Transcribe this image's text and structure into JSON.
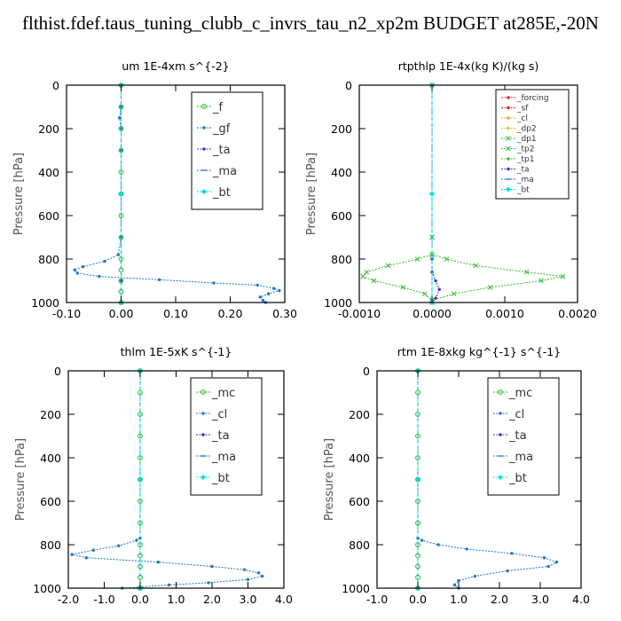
{
  "figure": {
    "title": "flthist.fdef.taus_tuning_clubb_c_invrs_tau_n2_xp2m  BUDGET at285E,-20N"
  },
  "chart_data": [
    {
      "type": "line",
      "title": "um  1E-4xm s^{-2}",
      "ylabel": "Pressure [hPa]",
      "xlim": [
        -0.1,
        0.3
      ],
      "ylim": [
        1000,
        0
      ],
      "xticks": [
        "-0.10",
        "0.00",
        "0.10",
        "0.20",
        "0.30"
      ],
      "xtick_values": [
        -0.1,
        0.0,
        0.1,
        0.2,
        0.3
      ],
      "yticks": [
        "0",
        "200",
        "400",
        "600",
        "800",
        "1000"
      ],
      "ytick_values": [
        0,
        200,
        400,
        600,
        800,
        1000
      ],
      "legend_position": "top-right",
      "legend_size": "large",
      "series": [
        {
          "name": "_f",
          "color": "#22bb22",
          "marker": "circle",
          "points": [
            [
              0,
              0
            ],
            [
              0,
              100
            ],
            [
              0,
              200
            ],
            [
              0,
              300
            ],
            [
              0,
              400
            ],
            [
              0,
              500
            ],
            [
              0,
              600
            ],
            [
              0,
              700
            ],
            [
              0,
              800
            ],
            [
              0,
              850
            ],
            [
              0,
              900
            ],
            [
              0,
              950
            ],
            [
              0,
              1000
            ]
          ]
        },
        {
          "name": "_gf",
          "color": "#1f77c4",
          "marker": "dot",
          "points": [
            [
              0,
              0
            ],
            [
              0,
              100
            ],
            [
              -0.003,
              150
            ],
            [
              0,
              200
            ],
            [
              0,
              300
            ],
            [
              0,
              500
            ],
            [
              0,
              700
            ],
            [
              -0.005,
              780
            ],
            [
              -0.03,
              810
            ],
            [
              -0.07,
              835
            ],
            [
              -0.085,
              850
            ],
            [
              -0.08,
              865
            ],
            [
              -0.04,
              880
            ],
            [
              0.07,
              895
            ],
            [
              0.17,
              910
            ],
            [
              0.25,
              920
            ],
            [
              0.28,
              935
            ],
            [
              0.29,
              945
            ],
            [
              0.27,
              960
            ],
            [
              0.255,
              975
            ],
            [
              0.26,
              990
            ],
            [
              0.265,
              1000
            ]
          ]
        },
        {
          "name": "_ta",
          "color": "#3333cc",
          "marker": "dot",
          "points": [
            [
              0,
              0
            ],
            [
              0,
              500
            ],
            [
              0,
              900
            ],
            [
              0,
              1000
            ]
          ]
        },
        {
          "name": "_ma",
          "color": "#2a7fd4",
          "marker": "dash",
          "points": [
            [
              0,
              0
            ],
            [
              0,
              500
            ],
            [
              0,
              1000
            ]
          ]
        },
        {
          "name": "_bt",
          "color": "#00e0e0",
          "marker": "diamond",
          "points": [
            [
              0,
              0
            ],
            [
              0,
              500
            ],
            [
              0,
              1000
            ]
          ]
        }
      ]
    },
    {
      "type": "line",
      "title": "rtpthlp  1E-4x(kg K)/(kg s)",
      "ylabel": "Pressure [hPa]",
      "xlim": [
        -0.001,
        0.002
      ],
      "ylim": [
        1000,
        0
      ],
      "xticks": [
        "-0.0010",
        "0.0000",
        "0.0010",
        "0.0020"
      ],
      "xtick_values": [
        -0.001,
        0.0,
        0.001,
        0.002
      ],
      "yticks": [
        "0",
        "200",
        "400",
        "600",
        "800",
        "1000"
      ],
      "ytick_values": [
        0,
        200,
        400,
        600,
        800,
        1000
      ],
      "legend_position": "top-right",
      "legend_size": "small",
      "series": [
        {
          "name": "_forcing",
          "color": "#dd2222",
          "marker": "dot",
          "points": [
            [
              0,
              0
            ],
            [
              0,
              500
            ],
            [
              0,
              1000
            ]
          ]
        },
        {
          "name": "_sf",
          "color": "#dd2222",
          "marker": "dot",
          "points": [
            [
              0,
              0
            ],
            [
              0,
              500
            ],
            [
              0,
              1000
            ]
          ]
        },
        {
          "name": "_cl",
          "color": "#f0a020",
          "marker": "dot",
          "points": [
            [
              0,
              0
            ],
            [
              0,
              500
            ],
            [
              0,
              1000
            ]
          ]
        },
        {
          "name": "_dp2",
          "color": "#c8c820",
          "marker": "dot",
          "points": [
            [
              0,
              0
            ],
            [
              0,
              500
            ],
            [
              0,
              1000
            ]
          ]
        },
        {
          "name": "_dp1",
          "color": "#33bb33",
          "marker": "cross",
          "points": [
            [
              0,
              0
            ],
            [
              0,
              700
            ],
            [
              0,
              780
            ],
            [
              0.0002,
              800
            ],
            [
              0.0006,
              830
            ],
            [
              0.0013,
              860
            ],
            [
              0.0018,
              880
            ],
            [
              0.0015,
              900
            ],
            [
              0.0008,
              930
            ],
            [
              0.0003,
              960
            ],
            [
              0,
              990
            ],
            [
              0,
              1000
            ]
          ]
        },
        {
          "name": "_tp2",
          "color": "#33bb33",
          "marker": "cross",
          "points": [
            [
              0,
              0
            ],
            [
              0,
              700
            ],
            [
              0,
              780
            ],
            [
              -0.0002,
              800
            ],
            [
              -0.0006,
              830
            ],
            [
              -0.0009,
              860
            ],
            [
              -0.00095,
              880
            ],
            [
              -0.0008,
              900
            ],
            [
              -0.0004,
              930
            ],
            [
              -0.0001,
              960
            ],
            [
              0,
              990
            ],
            [
              0,
              1000
            ]
          ]
        },
        {
          "name": "_tp1",
          "color": "#33bb33",
          "marker": "dot",
          "points": [
            [
              0,
              0
            ],
            [
              0,
              500
            ],
            [
              0,
              1000
            ]
          ]
        },
        {
          "name": "_ta",
          "color": "#3333cc",
          "marker": "dot",
          "points": [
            [
              0,
              0
            ],
            [
              0,
              800
            ],
            [
              0,
              860
            ],
            [
              5e-05,
              900
            ],
            [
              0.0001,
              940
            ],
            [
              5e-05,
              980
            ],
            [
              0,
              1000
            ]
          ]
        },
        {
          "name": "_ma",
          "color": "#2a7fd4",
          "marker": "dash",
          "points": [
            [
              0,
              0
            ],
            [
              0,
              500
            ],
            [
              0,
              1000
            ]
          ]
        },
        {
          "name": "_bt",
          "color": "#00e0e0",
          "marker": "diamond",
          "points": [
            [
              0,
              0
            ],
            [
              0,
              500
            ],
            [
              0,
              1000
            ]
          ]
        }
      ]
    },
    {
      "type": "line",
      "title": "thlm  1E-5xK s^{-1}",
      "ylabel": "Pressure [hPa]",
      "xlim": [
        -2.0,
        4.0
      ],
      "ylim": [
        1000,
        0
      ],
      "xticks": [
        "-2.0",
        "-1.0",
        "0.0",
        "1.0",
        "2.0",
        "3.0",
        "4.0"
      ],
      "xtick_values": [
        -2,
        -1,
        0,
        1,
        2,
        3,
        4
      ],
      "yticks": [
        "0",
        "200",
        "400",
        "600",
        "800",
        "1000"
      ],
      "ytick_values": [
        0,
        200,
        400,
        600,
        800,
        1000
      ],
      "legend_position": "top-right",
      "legend_size": "large",
      "series": [
        {
          "name": "_mc",
          "color": "#22bb22",
          "marker": "circle",
          "points": [
            [
              0,
              0
            ],
            [
              0,
              100
            ],
            [
              0,
              200
            ],
            [
              0,
              300
            ],
            [
              0,
              400
            ],
            [
              0,
              500
            ],
            [
              0,
              600
            ],
            [
              0,
              700
            ],
            [
              0,
              800
            ],
            [
              0,
              850
            ],
            [
              0,
              900
            ],
            [
              0,
              950
            ],
            [
              0,
              1000
            ]
          ]
        },
        {
          "name": "_cl",
          "color": "#1f77c4",
          "marker": "dot",
          "points": [
            [
              0,
              0
            ],
            [
              0,
              500
            ],
            [
              0,
              770
            ],
            [
              -0.1,
              780
            ],
            [
              -0.6,
              805
            ],
            [
              -1.3,
              825
            ],
            [
              -1.9,
              845
            ],
            [
              -1.5,
              860
            ],
            [
              0.5,
              880
            ],
            [
              2.0,
              900
            ],
            [
              2.9,
              915
            ],
            [
              3.3,
              930
            ],
            [
              3.4,
              945
            ],
            [
              3.0,
              960
            ],
            [
              1.9,
              975
            ],
            [
              0.8,
              985
            ],
            [
              0,
              995
            ],
            [
              -0.5,
              1000
            ]
          ]
        },
        {
          "name": "_ta",
          "color": "#3333cc",
          "marker": "dot",
          "points": [
            [
              0,
              0
            ],
            [
              0,
              500
            ],
            [
              0,
              1000
            ]
          ]
        },
        {
          "name": "_ma",
          "color": "#2a7fd4",
          "marker": "dash",
          "points": [
            [
              0,
              0
            ],
            [
              0,
              500
            ],
            [
              0,
              1000
            ]
          ]
        },
        {
          "name": "_bt",
          "color": "#00e0e0",
          "marker": "diamond",
          "points": [
            [
              0,
              0
            ],
            [
              0,
              500
            ],
            [
              0,
              1000
            ]
          ]
        }
      ]
    },
    {
      "type": "line",
      "title": "rtm  1E-8xkg kg^{-1} s^{-1}",
      "ylabel": "Pressure [hPa]",
      "xlim": [
        -1.0,
        4.0
      ],
      "ylim": [
        1000,
        0
      ],
      "xticks": [
        "-1.0",
        "0.0",
        "1.0",
        "2.0",
        "3.0",
        "4.0"
      ],
      "xtick_values": [
        -1,
        0,
        1,
        2,
        3,
        4
      ],
      "yticks": [
        "0",
        "200",
        "400",
        "600",
        "800",
        "1000"
      ],
      "ytick_values": [
        0,
        200,
        400,
        600,
        800,
        1000
      ],
      "legend_position": "top-right",
      "legend_size": "large",
      "series": [
        {
          "name": "_mc",
          "color": "#22bb22",
          "marker": "circle",
          "points": [
            [
              0,
              0
            ],
            [
              0,
              100
            ],
            [
              0,
              200
            ],
            [
              0,
              300
            ],
            [
              0,
              400
            ],
            [
              0,
              500
            ],
            [
              0,
              600
            ],
            [
              0,
              700
            ],
            [
              0,
              800
            ],
            [
              0,
              850
            ],
            [
              0,
              900
            ],
            [
              0,
              950
            ],
            [
              0,
              1000
            ]
          ]
        },
        {
          "name": "_cl",
          "color": "#1f77c4",
          "marker": "dot",
          "points": [
            [
              0,
              0
            ],
            [
              0,
              500
            ],
            [
              0,
              770
            ],
            [
              0.1,
              780
            ],
            [
              0.5,
              800
            ],
            [
              1.2,
              820
            ],
            [
              2.3,
              840
            ],
            [
              3.1,
              860
            ],
            [
              3.4,
              880
            ],
            [
              3.2,
              900
            ],
            [
              2.2,
              920
            ],
            [
              1.4,
              945
            ],
            [
              1.0,
              965
            ],
            [
              0.9,
              985
            ],
            [
              1.0,
              1000
            ]
          ]
        },
        {
          "name": "_ta",
          "color": "#3333cc",
          "marker": "dot",
          "points": [
            [
              0,
              0
            ],
            [
              0,
              500
            ],
            [
              0,
              1000
            ]
          ]
        },
        {
          "name": "_ma",
          "color": "#2a7fd4",
          "marker": "dash",
          "points": [
            [
              0,
              0
            ],
            [
              0,
              500
            ],
            [
              0,
              1000
            ]
          ]
        },
        {
          "name": "_bt",
          "color": "#00e0e0",
          "marker": "diamond",
          "points": [
            [
              0,
              0
            ],
            [
              0,
              500
            ],
            [
              0,
              1000
            ]
          ]
        }
      ]
    }
  ]
}
